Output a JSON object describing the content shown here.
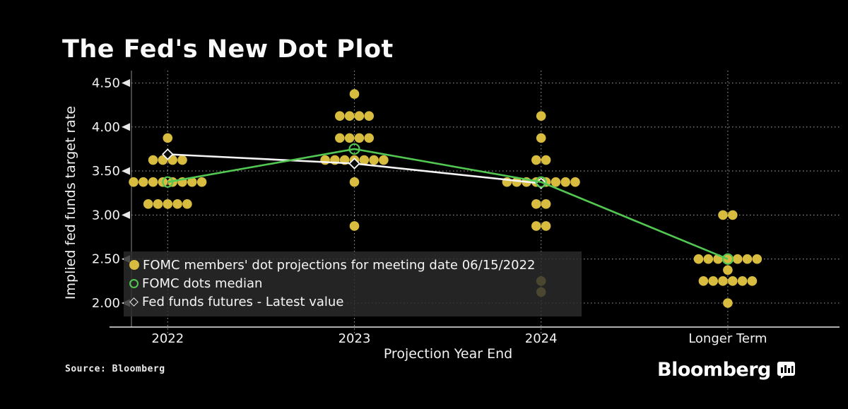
{
  "title": "The Fed's New Dot Plot",
  "source": "Source: Bloomberg",
  "brand": {
    "name": "Bloomberg",
    "icon": "bar-chart-bubble-icon"
  },
  "colors": {
    "background": "#000000",
    "text": "#F2F2F2",
    "dot": "#D7BC3F",
    "median_line": "#52C752",
    "futures_line": "#F5F5F5",
    "grid": "#9B9B9B",
    "axis": "#E8E8E8"
  },
  "legend": {
    "position": "inside-bottom-left",
    "items": [
      {
        "marker": "filled-dot",
        "color": "#D7BC3F",
        "label": "FOMC members' dot projections for meeting date 06/15/2022"
      },
      {
        "marker": "open-circle",
        "color": "#52C752",
        "label": "FOMC dots median"
      },
      {
        "marker": "open-diamond",
        "color": "#F5F5F5",
        "label": "Fed funds futures - Latest value"
      }
    ]
  },
  "chart_data": {
    "type": "scatter",
    "title": "The Fed's New Dot Plot",
    "xlabel": "Projection Year End",
    "ylabel": "Implied fed funds target rate",
    "categories": [
      "2022",
      "2023",
      "2024",
      "Longer Term"
    ],
    "y_ticks": [
      "4.50",
      "4.00",
      "3.50",
      "3.00",
      "2.50",
      "2.00"
    ],
    "ylim": [
      1.9,
      4.6
    ],
    "grid": "dotted-both-axes",
    "dot_clusters": [
      {
        "category": "2022",
        "dots": [
          {
            "value": 3.875,
            "count": 1
          },
          {
            "value": 3.625,
            "count": 4
          },
          {
            "value": 3.375,
            "count": 8
          },
          {
            "value": 3.125,
            "count": 5
          }
        ]
      },
      {
        "category": "2023",
        "dots": [
          {
            "value": 4.375,
            "count": 1
          },
          {
            "value": 4.125,
            "count": 4
          },
          {
            "value": 3.875,
            "count": 4
          },
          {
            "value": 3.625,
            "count": 7
          },
          {
            "value": 3.375,
            "count": 1
          },
          {
            "value": 2.875,
            "count": 1
          }
        ]
      },
      {
        "category": "2024",
        "dots": [
          {
            "value": 4.125,
            "count": 1
          },
          {
            "value": 3.875,
            "count": 1
          },
          {
            "value": 3.625,
            "count": 2
          },
          {
            "value": 3.375,
            "count": 8
          },
          {
            "value": 3.125,
            "count": 2
          },
          {
            "value": 2.875,
            "count": 2
          },
          {
            "value": 2.25,
            "count": 1
          },
          {
            "value": 2.125,
            "count": 1
          }
        ]
      },
      {
        "category": "Longer Term",
        "dots": [
          {
            "value": 3.0,
            "count": 2
          },
          {
            "value": 2.5,
            "count": 7
          },
          {
            "value": 2.375,
            "count": 1
          },
          {
            "value": 2.25,
            "count": 6
          },
          {
            "value": 2.0,
            "count": 1
          }
        ]
      }
    ],
    "series": [
      {
        "name": "FOMC dots median",
        "type": "line",
        "marker": "open-circle",
        "color": "#52C752",
        "x": [
          "2022",
          "2023",
          "2024",
          "Longer Term"
        ],
        "values": [
          3.375,
          3.75,
          3.375,
          2.5
        ]
      },
      {
        "name": "Fed funds futures - Latest value",
        "type": "line",
        "marker": "open-diamond",
        "color": "#F5F5F5",
        "x": [
          "2022",
          "2023",
          "2024"
        ],
        "values": [
          3.69,
          3.585,
          3.36
        ]
      }
    ]
  }
}
